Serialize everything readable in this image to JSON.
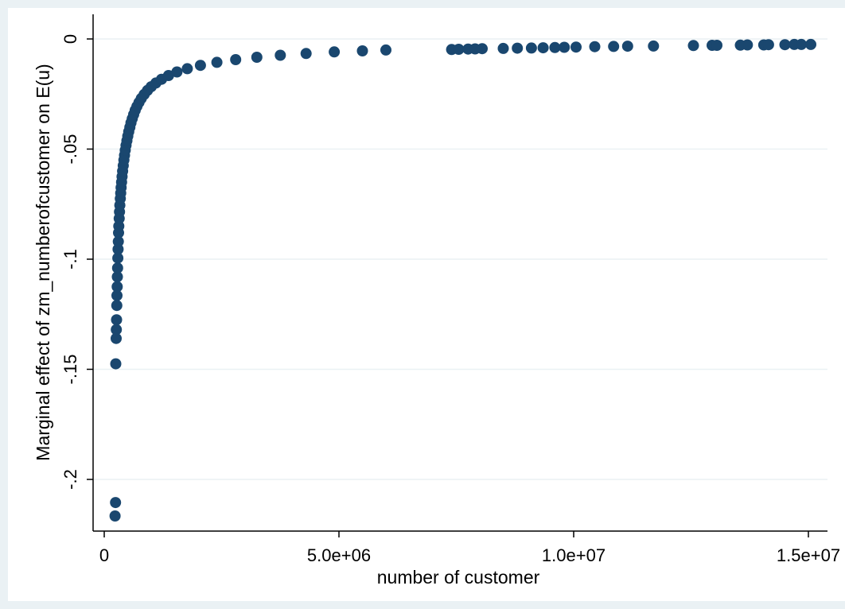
{
  "chart_data": {
    "type": "scatter",
    "title": "",
    "xlabel": "number of customer",
    "ylabel": "Marginal effect of zm_numberofcustomer on E(u)",
    "xlim": [
      0,
      15000000
    ],
    "ylim": [
      -0.2,
      0
    ],
    "x_ticks": [
      0,
      5000000,
      10000000,
      15000000
    ],
    "x_tick_labels": [
      "0",
      "5.0e+06",
      "1.0e+07",
      "1.5e+07"
    ],
    "y_ticks": [
      0,
      -0.05,
      -0.1,
      -0.15,
      -0.2
    ],
    "y_tick_labels": [
      "0",
      "-.05",
      "-.1",
      "-.15",
      "-.2"
    ],
    "grid": "horizontal",
    "legend": "none",
    "colors": {
      "marker": "#1a476f",
      "plot_background": "#ffffff",
      "outer_background": "#eaf1f4",
      "gridline": "#eaf1f4"
    },
    "series": [
      {
        "points": [
          [
            230000,
            -0.2166
          ],
          [
            240000,
            -0.2105
          ],
          [
            245000,
            -0.1475
          ],
          [
            255000,
            -0.136
          ],
          [
            258000,
            -0.132
          ],
          [
            262000,
            -0.1275
          ],
          [
            268000,
            -0.121
          ],
          [
            272000,
            -0.1165
          ],
          [
            276000,
            -0.1125
          ],
          [
            280000,
            -0.108
          ],
          [
            285000,
            -0.104
          ],
          [
            290000,
            -0.0995
          ],
          [
            295000,
            -0.0955
          ],
          [
            300000,
            -0.092
          ],
          [
            305000,
            -0.088
          ],
          [
            310000,
            -0.085
          ],
          [
            318000,
            -0.0815
          ],
          [
            325000,
            -0.0785
          ],
          [
            333000,
            -0.0755
          ],
          [
            342000,
            -0.0725
          ],
          [
            350000,
            -0.07
          ],
          [
            360000,
            -0.0675
          ],
          [
            370000,
            -0.065
          ],
          [
            380000,
            -0.0625
          ],
          [
            392000,
            -0.06
          ],
          [
            405000,
            -0.0575
          ],
          [
            418000,
            -0.055
          ],
          [
            432000,
            -0.0528
          ],
          [
            448000,
            -0.0505
          ],
          [
            465000,
            -0.0483
          ],
          [
            483000,
            -0.0462
          ],
          [
            502000,
            -0.0441
          ],
          [
            522000,
            -0.0421
          ],
          [
            545000,
            -0.0401
          ],
          [
            570000,
            -0.0381
          ],
          [
            597000,
            -0.0362
          ],
          [
            627000,
            -0.0343
          ],
          [
            660000,
            -0.0324
          ],
          [
            697000,
            -0.0306
          ],
          [
            740000,
            -0.0288
          ],
          [
            790000,
            -0.027
          ],
          [
            850000,
            -0.0252
          ],
          [
            920000,
            -0.0234
          ],
          [
            1000000,
            -0.0217
          ],
          [
            1100000,
            -0.02
          ],
          [
            1220000,
            -0.0183
          ],
          [
            1370000,
            -0.0166
          ],
          [
            1550000,
            -0.015
          ],
          [
            1770000,
            -0.0135
          ],
          [
            2050000,
            -0.012
          ],
          [
            2400000,
            -0.0106
          ],
          [
            2800000,
            -0.0094
          ],
          [
            3250000,
            -0.0083
          ],
          [
            3750000,
            -0.0074
          ],
          [
            4300000,
            -0.0066
          ],
          [
            4900000,
            -0.0059
          ],
          [
            5500000,
            -0.0054
          ],
          [
            6000000,
            -0.005
          ],
          [
            7400000,
            -0.0048
          ],
          [
            7550000,
            -0.0047
          ],
          [
            7750000,
            -0.0046
          ],
          [
            7900000,
            -0.0045
          ],
          [
            8050000,
            -0.0044
          ],
          [
            8500000,
            -0.0043
          ],
          [
            8800000,
            -0.0042
          ],
          [
            9100000,
            -0.0041
          ],
          [
            9350000,
            -0.004
          ],
          [
            9600000,
            -0.0039
          ],
          [
            9800000,
            -0.0038
          ],
          [
            10050000,
            -0.0037
          ],
          [
            10450000,
            -0.0035
          ],
          [
            10850000,
            -0.0034
          ],
          [
            11150000,
            -0.0033
          ],
          [
            11700000,
            -0.0032
          ],
          [
            12550000,
            -0.003
          ],
          [
            12950000,
            -0.0029
          ],
          [
            13050000,
            -0.0029
          ],
          [
            13550000,
            -0.0028
          ],
          [
            13700000,
            -0.0027
          ],
          [
            14050000,
            -0.0027
          ],
          [
            14150000,
            -0.0026
          ],
          [
            14500000,
            -0.0026
          ],
          [
            14700000,
            -0.0025
          ],
          [
            14850000,
            -0.0025
          ],
          [
            15050000,
            -0.0025
          ]
        ]
      }
    ]
  }
}
